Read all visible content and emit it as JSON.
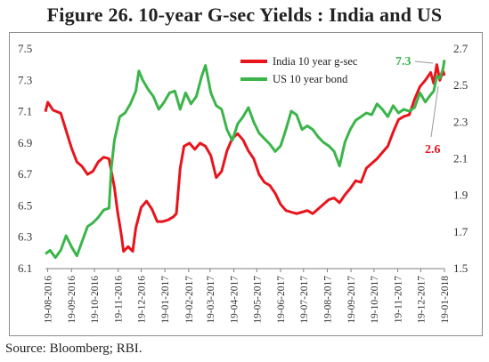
{
  "figure": {
    "title": "Figure 26. 10-year G-sec Yields : India and US",
    "source": "Source: Bloomberg; RBI."
  },
  "chart_data": {
    "type": "line",
    "title": "Figure 26. 10-year G-sec Yields : India and US",
    "x_dates": [
      "19-08-2016",
      "19-09-2016",
      "19-10-2016",
      "19-11-2016",
      "19-12-2016",
      "19-01-2017",
      "19-02-2017",
      "19-03-2017",
      "19-04-2017",
      "19-05-2017",
      "19-06-2017",
      "19-07-2017",
      "19-08-2017",
      "19-09-2017",
      "19-10-2017",
      "19-11-2017",
      "19-12-2017",
      "19-01-2018"
    ],
    "left_axis": {
      "ticks": [
        "6.1",
        "6.3",
        "6.5",
        "6.7",
        "6.9",
        "7.1",
        "7.3",
        "7.5"
      ],
      "ylim": [
        6.1,
        7.5
      ]
    },
    "right_axis": {
      "ticks": [
        "1.5",
        "1.7",
        "1.9",
        "2.1",
        "2.3",
        "2.5",
        "2.7"
      ],
      "ylim": [
        1.5,
        2.7
      ]
    },
    "legend_position": "top-center",
    "series": [
      {
        "name": "India 10 year g-sec",
        "color": "#e8141c",
        "axis": "left",
        "points": [
          [
            "2016-08-16",
            7.1
          ],
          [
            "2016-08-19",
            7.16
          ],
          [
            "2016-08-26",
            7.11
          ],
          [
            "2016-09-05",
            7.09
          ],
          [
            "2016-09-12",
            6.98
          ],
          [
            "2016-09-19",
            6.87
          ],
          [
            "2016-09-26",
            6.78
          ],
          [
            "2016-10-03",
            6.75
          ],
          [
            "2016-10-10",
            6.7
          ],
          [
            "2016-10-17",
            6.72
          ],
          [
            "2016-10-24",
            6.78
          ],
          [
            "2016-10-31",
            6.81
          ],
          [
            "2016-11-07",
            6.8
          ],
          [
            "2016-11-10",
            6.72
          ],
          [
            "2016-11-14",
            6.62
          ],
          [
            "2016-11-18",
            6.47
          ],
          [
            "2016-11-23",
            6.32
          ],
          [
            "2016-11-26",
            6.21
          ],
          [
            "2016-12-02",
            6.24
          ],
          [
            "2016-12-08",
            6.21
          ],
          [
            "2016-12-12",
            6.36
          ],
          [
            "2016-12-19",
            6.49
          ],
          [
            "2016-12-26",
            6.53
          ],
          [
            "2017-01-02",
            6.48
          ],
          [
            "2017-01-09",
            6.4
          ],
          [
            "2017-01-16",
            6.4
          ],
          [
            "2017-01-23",
            6.41
          ],
          [
            "2017-01-30",
            6.43
          ],
          [
            "2017-02-03",
            6.45
          ],
          [
            "2017-02-08",
            6.74
          ],
          [
            "2017-02-13",
            6.88
          ],
          [
            "2017-02-20",
            6.9
          ],
          [
            "2017-02-27",
            6.86
          ],
          [
            "2017-03-06",
            6.9
          ],
          [
            "2017-03-13",
            6.88
          ],
          [
            "2017-03-20",
            6.82
          ],
          [
            "2017-03-27",
            6.68
          ],
          [
            "2017-04-03",
            6.72
          ],
          [
            "2017-04-10",
            6.85
          ],
          [
            "2017-04-17",
            6.93
          ],
          [
            "2017-04-24",
            6.96
          ],
          [
            "2017-05-01",
            6.92
          ],
          [
            "2017-05-08",
            6.85
          ],
          [
            "2017-05-15",
            6.8
          ],
          [
            "2017-05-22",
            6.7
          ],
          [
            "2017-05-29",
            6.65
          ],
          [
            "2017-06-05",
            6.63
          ],
          [
            "2017-06-12",
            6.58
          ],
          [
            "2017-06-19",
            6.51
          ],
          [
            "2017-06-26",
            6.47
          ],
          [
            "2017-07-03",
            6.46
          ],
          [
            "2017-07-10",
            6.45
          ],
          [
            "2017-07-17",
            6.46
          ],
          [
            "2017-07-24",
            6.47
          ],
          [
            "2017-07-31",
            6.45
          ],
          [
            "2017-08-07",
            6.48
          ],
          [
            "2017-08-14",
            6.51
          ],
          [
            "2017-08-21",
            6.54
          ],
          [
            "2017-08-28",
            6.55
          ],
          [
            "2017-09-04",
            6.52
          ],
          [
            "2017-09-11",
            6.57
          ],
          [
            "2017-09-18",
            6.61
          ],
          [
            "2017-09-25",
            6.66
          ],
          [
            "2017-10-02",
            6.65
          ],
          [
            "2017-10-09",
            6.74
          ],
          [
            "2017-10-16",
            6.77
          ],
          [
            "2017-10-23",
            6.8
          ],
          [
            "2017-10-30",
            6.84
          ],
          [
            "2017-11-06",
            6.88
          ],
          [
            "2017-11-13",
            6.97
          ],
          [
            "2017-11-20",
            7.05
          ],
          [
            "2017-11-27",
            7.07
          ],
          [
            "2017-12-04",
            7.08
          ],
          [
            "2017-12-11",
            7.18
          ],
          [
            "2017-12-18",
            7.26
          ],
          [
            "2017-12-25",
            7.3
          ],
          [
            "2018-01-01",
            7.35
          ],
          [
            "2018-01-05",
            7.28
          ],
          [
            "2018-01-09",
            7.4
          ],
          [
            "2018-01-13",
            7.3
          ],
          [
            "2018-01-17",
            7.36
          ],
          [
            "2018-01-19",
            7.33
          ]
        ]
      },
      {
        "name": "US 10 year bond",
        "color": "#3bb54a",
        "axis": "right",
        "points": [
          [
            "2016-08-16",
            1.58
          ],
          [
            "2016-08-22",
            1.6
          ],
          [
            "2016-08-29",
            1.56
          ],
          [
            "2016-09-05",
            1.6
          ],
          [
            "2016-09-12",
            1.68
          ],
          [
            "2016-09-19",
            1.62
          ],
          [
            "2016-09-26",
            1.57
          ],
          [
            "2016-10-03",
            1.65
          ],
          [
            "2016-10-10",
            1.73
          ],
          [
            "2016-10-17",
            1.75
          ],
          [
            "2016-10-24",
            1.78
          ],
          [
            "2016-10-31",
            1.82
          ],
          [
            "2016-11-07",
            1.83
          ],
          [
            "2016-11-10",
            2.05
          ],
          [
            "2016-11-14",
            2.2
          ],
          [
            "2016-11-21",
            2.33
          ],
          [
            "2016-11-28",
            2.35
          ],
          [
            "2016-12-05",
            2.4
          ],
          [
            "2016-12-12",
            2.47
          ],
          [
            "2016-12-16",
            2.58
          ],
          [
            "2016-12-21",
            2.53
          ],
          [
            "2016-12-28",
            2.48
          ],
          [
            "2017-01-04",
            2.44
          ],
          [
            "2017-01-11",
            2.37
          ],
          [
            "2017-01-18",
            2.41
          ],
          [
            "2017-01-25",
            2.46
          ],
          [
            "2017-02-01",
            2.47
          ],
          [
            "2017-02-08",
            2.37
          ],
          [
            "2017-02-15",
            2.46
          ],
          [
            "2017-02-22",
            2.4
          ],
          [
            "2017-03-01",
            2.44
          ],
          [
            "2017-03-08",
            2.55
          ],
          [
            "2017-03-13",
            2.61
          ],
          [
            "2017-03-20",
            2.46
          ],
          [
            "2017-03-27",
            2.39
          ],
          [
            "2017-04-03",
            2.37
          ],
          [
            "2017-04-10",
            2.26
          ],
          [
            "2017-04-17",
            2.2
          ],
          [
            "2017-04-24",
            2.29
          ],
          [
            "2017-05-01",
            2.33
          ],
          [
            "2017-05-08",
            2.38
          ],
          [
            "2017-05-15",
            2.3
          ],
          [
            "2017-05-22",
            2.24
          ],
          [
            "2017-05-29",
            2.21
          ],
          [
            "2017-06-05",
            2.18
          ],
          [
            "2017-06-12",
            2.14
          ],
          [
            "2017-06-19",
            2.17
          ],
          [
            "2017-06-26",
            2.26
          ],
          [
            "2017-07-03",
            2.36
          ],
          [
            "2017-07-10",
            2.34
          ],
          [
            "2017-07-17",
            2.26
          ],
          [
            "2017-07-24",
            2.28
          ],
          [
            "2017-07-31",
            2.26
          ],
          [
            "2017-08-07",
            2.22
          ],
          [
            "2017-08-14",
            2.19
          ],
          [
            "2017-08-21",
            2.17
          ],
          [
            "2017-08-28",
            2.14
          ],
          [
            "2017-09-04",
            2.06
          ],
          [
            "2017-09-11",
            2.19
          ],
          [
            "2017-09-18",
            2.26
          ],
          [
            "2017-09-25",
            2.31
          ],
          [
            "2017-10-02",
            2.33
          ],
          [
            "2017-10-09",
            2.35
          ],
          [
            "2017-10-16",
            2.34
          ],
          [
            "2017-10-23",
            2.4
          ],
          [
            "2017-10-30",
            2.37
          ],
          [
            "2017-11-06",
            2.33
          ],
          [
            "2017-11-13",
            2.39
          ],
          [
            "2017-11-20",
            2.35
          ],
          [
            "2017-11-27",
            2.37
          ],
          [
            "2017-12-04",
            2.36
          ],
          [
            "2017-12-11",
            2.38
          ],
          [
            "2017-12-18",
            2.46
          ],
          [
            "2017-12-25",
            2.41
          ],
          [
            "2018-01-01",
            2.45
          ],
          [
            "2018-01-05",
            2.47
          ],
          [
            "2018-01-09",
            2.55
          ],
          [
            "2018-01-13",
            2.54
          ],
          [
            "2018-01-17",
            2.59
          ],
          [
            "2018-01-19",
            2.64
          ]
        ]
      }
    ],
    "annotations": [
      {
        "text": "7.3",
        "color": "#3bb54a",
        "series": "India 10 year g-sec"
      },
      {
        "text": "2.6",
        "color": "#e8141c",
        "series": "US 10 year bond"
      }
    ]
  }
}
